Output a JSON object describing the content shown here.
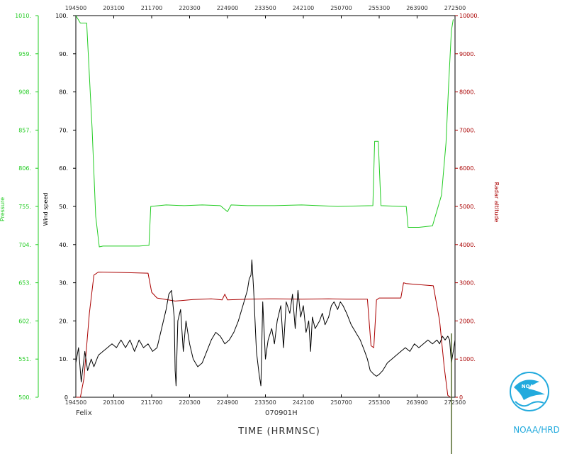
{
  "chart_data": {
    "type": "line",
    "storm": "Felix",
    "date_code": "070901H",
    "xlabel": "TIME (HRMNSC)",
    "x_ticks": [
      "194500",
      "203100",
      "211700",
      "220300",
      "224900",
      "233500",
      "242100",
      "250700",
      "255300",
      "263900",
      "272500"
    ],
    "axes": {
      "wind": {
        "label": "Wind speed",
        "ylim": [
          0,
          100
        ],
        "ticks": [
          "0",
          "10.",
          "20.",
          "30.",
          "40.",
          "50.",
          "60.",
          "70.",
          "80.",
          "90.",
          "100."
        ],
        "color": "#000000"
      },
      "pressure": {
        "label": "Pressure",
        "ylim": [
          500,
          1010
        ],
        "ticks": [
          "500.",
          "551.",
          "602.",
          "653.",
          "704.",
          "755.",
          "806.",
          "857.",
          "908.",
          "959.",
          "1010."
        ],
        "color": "#22cc22"
      },
      "altitude": {
        "label": "Radar altitude",
        "ylim": [
          0,
          10000
        ],
        "ticks": [
          "0",
          "1000.",
          "2000.",
          "3000.",
          "4000.",
          "5000.",
          "6000.",
          "7000.",
          "8000.",
          "9000.",
          "10000."
        ],
        "color": "#aa0000"
      }
    },
    "series": [
      {
        "name": "Pressure",
        "axis": "pressure",
        "color": "#22cc22",
        "points": [
          [
            0,
            1010
          ],
          [
            0.5,
            1000
          ],
          [
            1.2,
            1000
          ],
          [
            1.8,
            860
          ],
          [
            2.2,
            742
          ],
          [
            2.6,
            701
          ],
          [
            3,
            702
          ],
          [
            5,
            702
          ],
          [
            7,
            702
          ],
          [
            8.1,
            703
          ],
          [
            8.3,
            755
          ],
          [
            10,
            757
          ],
          [
            12,
            756
          ],
          [
            14,
            757
          ],
          [
            16,
            756
          ],
          [
            16.8,
            748
          ],
          [
            17.2,
            757
          ],
          [
            19,
            756
          ],
          [
            22,
            756
          ],
          [
            25,
            757
          ],
          [
            29,
            755
          ],
          [
            32.9,
            756
          ],
          [
            33.1,
            842
          ],
          [
            33.5,
            842
          ],
          [
            33.8,
            756
          ],
          [
            36,
            755
          ],
          [
            36.6,
            755
          ],
          [
            36.8,
            727
          ],
          [
            38,
            727
          ],
          [
            39.5,
            729
          ],
          [
            40.5,
            770
          ],
          [
            41,
            840
          ],
          [
            41.3,
            920
          ],
          [
            41.6,
            990
          ],
          [
            41.8,
            1005
          ]
        ]
      },
      {
        "name": "Radar altitude",
        "axis": "altitude",
        "color": "#aa0000",
        "points": [
          [
            0,
            0
          ],
          [
            0.5,
            0
          ],
          [
            0.9,
            500
          ],
          [
            1.5,
            2200
          ],
          [
            2,
            3200
          ],
          [
            2.5,
            3280
          ],
          [
            5,
            3270
          ],
          [
            8,
            3250
          ],
          [
            8.4,
            2750
          ],
          [
            9,
            2600
          ],
          [
            11,
            2520
          ],
          [
            13,
            2560
          ],
          [
            15,
            2580
          ],
          [
            16.2,
            2550
          ],
          [
            16.5,
            2700
          ],
          [
            16.8,
            2550
          ],
          [
            19,
            2570
          ],
          [
            22,
            2580
          ],
          [
            25,
            2570
          ],
          [
            28,
            2580
          ],
          [
            30,
            2570
          ],
          [
            32.3,
            2570
          ],
          [
            32.7,
            1350
          ],
          [
            33,
            1300
          ],
          [
            33.3,
            2550
          ],
          [
            33.6,
            2600
          ],
          [
            36,
            2600
          ],
          [
            36.3,
            3000
          ],
          [
            36.6,
            2980
          ],
          [
            38,
            2950
          ],
          [
            39.6,
            2920
          ],
          [
            40.3,
            2000
          ],
          [
            40.8,
            800
          ],
          [
            41.2,
            50
          ],
          [
            41.5,
            0
          ]
        ]
      },
      {
        "name": "Wind speed",
        "axis": "wind",
        "color": "#000000",
        "points": [
          [
            0,
            9
          ],
          [
            0.3,
            13
          ],
          [
            0.6,
            4
          ],
          [
            1,
            12
          ],
          [
            1.3,
            7
          ],
          [
            1.7,
            10
          ],
          [
            2,
            8
          ],
          [
            2.5,
            11
          ],
          [
            3,
            12
          ],
          [
            3.5,
            13
          ],
          [
            4,
            14
          ],
          [
            4.5,
            13
          ],
          [
            5,
            15
          ],
          [
            5.5,
            13
          ],
          [
            6,
            15
          ],
          [
            6.5,
            12
          ],
          [
            7,
            15
          ],
          [
            7.5,
            13
          ],
          [
            8,
            14
          ],
          [
            8.5,
            12
          ],
          [
            9,
            13
          ],
          [
            9.5,
            18
          ],
          [
            10,
            23
          ],
          [
            10.3,
            27
          ],
          [
            10.6,
            28
          ],
          [
            10.9,
            21
          ],
          [
            11,
            7
          ],
          [
            11.1,
            3
          ],
          [
            11.3,
            20
          ],
          [
            11.6,
            23
          ],
          [
            11.9,
            12
          ],
          [
            12.2,
            20
          ],
          [
            12.6,
            14
          ],
          [
            13,
            10
          ],
          [
            13.5,
            8
          ],
          [
            14,
            9
          ],
          [
            14.5,
            12
          ],
          [
            15,
            15
          ],
          [
            15.5,
            17
          ],
          [
            16,
            16
          ],
          [
            16.5,
            14
          ],
          [
            17,
            15
          ],
          [
            17.5,
            17
          ],
          [
            18,
            20
          ],
          [
            18.5,
            24
          ],
          [
            19,
            28
          ],
          [
            19.2,
            31
          ],
          [
            19.4,
            32
          ],
          [
            19.5,
            36
          ],
          [
            19.7,
            28
          ],
          [
            20,
            12
          ],
          [
            20.3,
            6
          ],
          [
            20.5,
            3
          ],
          [
            20.7,
            25
          ],
          [
            21,
            10
          ],
          [
            21.3,
            15
          ],
          [
            21.7,
            18
          ],
          [
            22,
            14
          ],
          [
            22.3,
            20
          ],
          [
            22.7,
            24
          ],
          [
            23,
            13
          ],
          [
            23.3,
            25
          ],
          [
            23.7,
            22
          ],
          [
            24,
            27
          ],
          [
            24.3,
            18
          ],
          [
            24.6,
            28
          ],
          [
            24.9,
            21
          ],
          [
            25.2,
            24
          ],
          [
            25.5,
            17
          ],
          [
            25.8,
            20
          ],
          [
            26,
            12
          ],
          [
            26.2,
            21
          ],
          [
            26.5,
            18
          ],
          [
            27,
            20
          ],
          [
            27.3,
            22
          ],
          [
            27.6,
            19
          ],
          [
            28,
            21
          ],
          [
            28.3,
            24
          ],
          [
            28.6,
            25
          ],
          [
            29,
            23
          ],
          [
            29.3,
            25
          ],
          [
            29.6,
            24
          ],
          [
            30,
            22
          ],
          [
            30.5,
            19
          ],
          [
            31,
            17
          ],
          [
            31.5,
            15
          ],
          [
            32,
            12
          ],
          [
            32.3,
            10
          ],
          [
            32.6,
            7
          ],
          [
            33,
            6
          ],
          [
            33.3,
            5.5
          ],
          [
            33.6,
            6
          ],
          [
            34,
            7
          ],
          [
            34.5,
            9
          ],
          [
            35,
            10
          ],
          [
            35.5,
            11
          ],
          [
            36,
            12
          ],
          [
            36.5,
            13
          ],
          [
            37,
            12
          ],
          [
            37.5,
            14
          ],
          [
            38,
            13
          ],
          [
            38.5,
            14
          ],
          [
            39,
            15
          ],
          [
            39.5,
            14
          ],
          [
            40,
            15
          ],
          [
            40.3,
            14
          ],
          [
            40.6,
            16
          ],
          [
            40.9,
            15
          ],
          [
            41.2,
            16
          ],
          [
            41.4,
            15
          ],
          [
            41.6,
            9
          ],
          [
            41.8,
            12
          ],
          [
            42,
            15
          ]
        ]
      }
    ],
    "logo_text": "NOAA",
    "footer_brand": "NOAA/HRD"
  },
  "colors": {
    "pressure": "#22cc22",
    "wind": "#000000",
    "altitude": "#aa0000",
    "logo": "#22aadd",
    "frame": "#000000"
  }
}
